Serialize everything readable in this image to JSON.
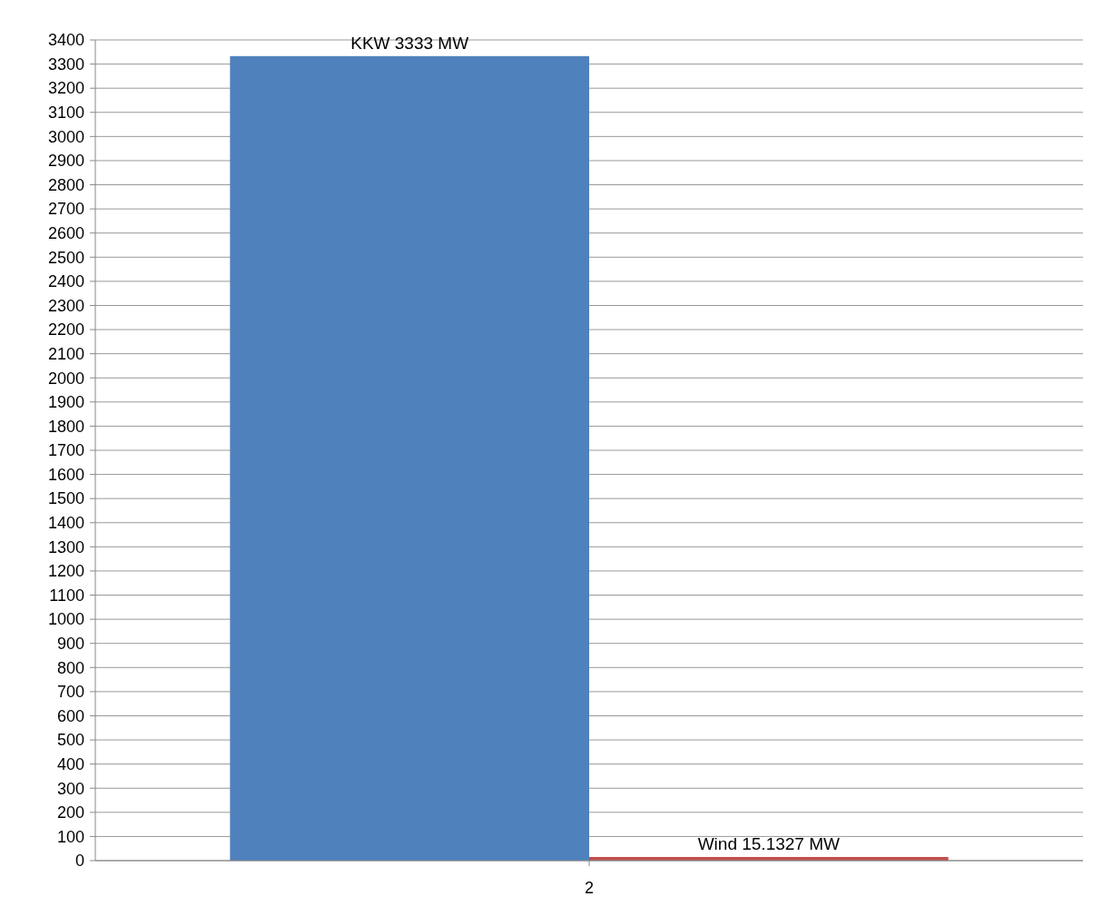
{
  "chart_data": {
    "type": "bar",
    "categories": [
      "2"
    ],
    "series": [
      {
        "name": "KKW",
        "color": "#4f81bd",
        "values": [
          3333
        ],
        "value_labels": [
          "3333 MW"
        ]
      },
      {
        "name": "Wind",
        "color": "#c0504d",
        "values": [
          15.1327
        ],
        "value_labels": [
          "15.1327 MW"
        ]
      }
    ],
    "ylim": [
      0,
      3400
    ],
    "yticks": [
      0,
      100,
      200,
      300,
      400,
      500,
      600,
      700,
      800,
      900,
      1000,
      1100,
      1200,
      1300,
      1400,
      1500,
      1600,
      1700,
      1800,
      1900,
      2000,
      2100,
      2200,
      2300,
      2400,
      2500,
      2600,
      2700,
      2800,
      2900,
      3000,
      3100,
      3200,
      3300,
      3400
    ],
    "grid": "y",
    "legend": false
  }
}
